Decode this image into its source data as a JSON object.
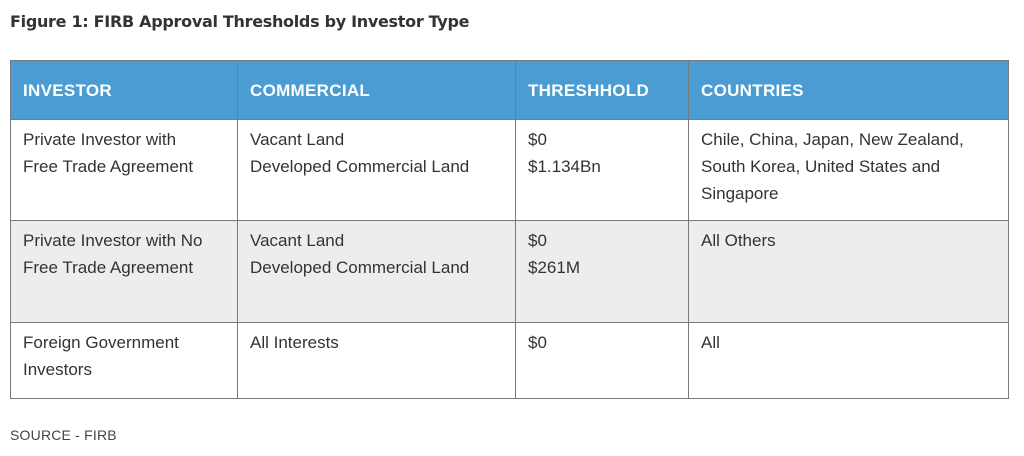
{
  "figure": {
    "title": "Figure 1:  FIRB Approval Thresholds by Investor Type"
  },
  "table": {
    "headers": [
      "INVESTOR",
      "COMMERCIAL",
      "THRESHHOLD",
      "COUNTRIES"
    ],
    "rows": [
      {
        "investor": [
          "Private Investor with",
          "Free Trade Agreement"
        ],
        "commercial": [
          "Vacant Land",
          "Developed Commercial Land"
        ],
        "threshold": [
          "$0",
          "$1.134Bn"
        ],
        "countries": [
          "Chile, China, Japan, New Zealand,",
          "South Korea, United States and",
          "Singapore"
        ]
      },
      {
        "investor": [
          "Private Investor with No",
          "Free Trade Agreement"
        ],
        "commercial": [
          "Vacant Land",
          "Developed Commercial Land"
        ],
        "threshold": [
          "$0",
          "$261M"
        ],
        "countries": [
          "All Others"
        ]
      },
      {
        "investor": [
          "Foreign Government",
          "Investors"
        ],
        "commercial": [
          "All Interests"
        ],
        "threshold": [
          "$0"
        ],
        "countries": [
          "All"
        ]
      }
    ]
  },
  "source": "SOURCE - FIRB",
  "colors": {
    "header_bg": "#4b9cd3",
    "header_text": "#ffffff",
    "alt_row_bg": "#ededed",
    "border": "#7a7a7a"
  }
}
